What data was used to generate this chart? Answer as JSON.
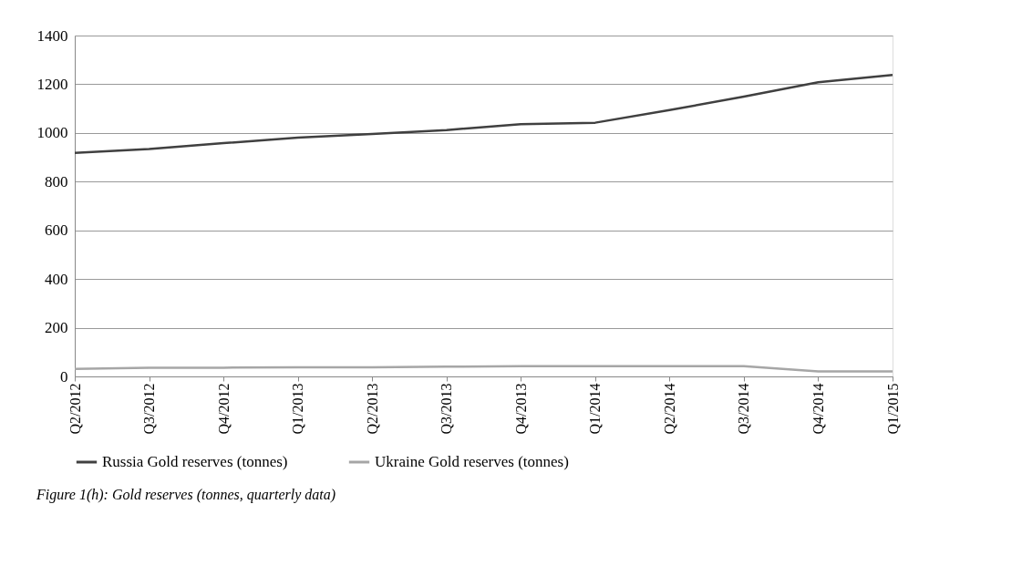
{
  "chart_data": {
    "type": "line",
    "categories": [
      "Q2/2012",
      "Q3/2012",
      "Q4/2012",
      "Q1/2013",
      "Q2/2013",
      "Q3/2013",
      "Q4/2013",
      "Q1/2014",
      "Q2/2014",
      "Q3/2014",
      "Q4/2014",
      "Q1/2015"
    ],
    "series": [
      {
        "name": "Russia Gold reserves (tonnes)",
        "color": "#404040",
        "values": [
          918,
          934,
          958,
          981,
          996,
          1012,
          1036,
          1042,
          1094,
          1149,
          1208,
          1238
        ]
      },
      {
        "name": "Ukraine Gold reserves (tonnes)",
        "color": "#a6a6a6",
        "values": [
          31,
          36,
          36,
          37,
          37,
          40,
          42,
          42,
          42,
          42,
          21,
          21
        ]
      }
    ],
    "ylim": [
      0,
      1400
    ],
    "yticks": [
      0,
      200,
      400,
      600,
      800,
      1000,
      1200,
      1400
    ],
    "grid": "y",
    "legend": "bottom",
    "marker": "none",
    "line_style": "solid",
    "annotations": [
      "Figure 1(h): Gold reserves (tonnes, quarterly data)"
    ]
  }
}
